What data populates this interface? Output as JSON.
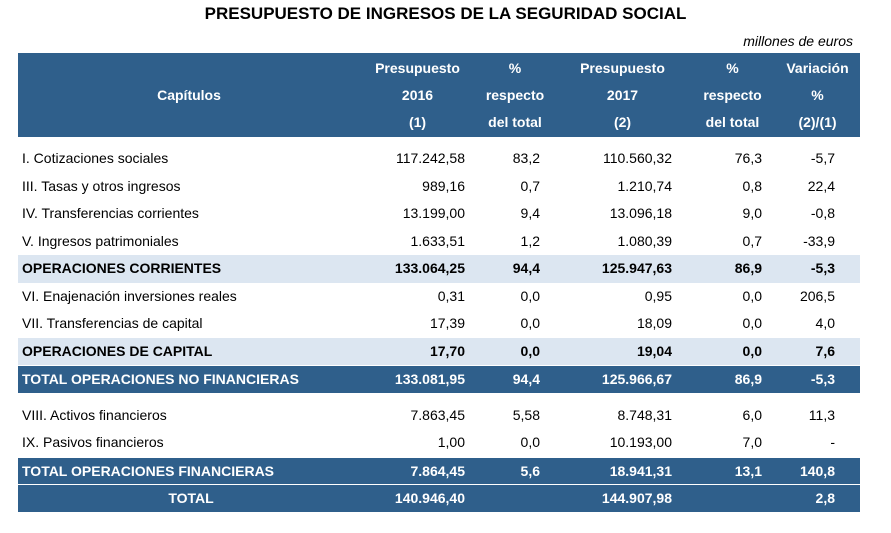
{
  "title": "PRESUPUESTO DE INGRESOS DE LA SEGURIDAD SOCIAL",
  "unit": "millones de euros",
  "table": {
    "header": [
      [
        "Capítulos"
      ],
      [
        "Presupuesto",
        "2016",
        "(1)"
      ],
      [
        "%",
        "respecto",
        "del total"
      ],
      [
        "Presupuesto",
        "2017",
        "(2)"
      ],
      [
        "%",
        "respecto",
        "del total"
      ],
      [
        "Variación",
        "%",
        "(2)/(1)"
      ]
    ],
    "rows": [
      [
        "I. Cotizaciones sociales",
        "117.242,58",
        "83,2",
        "110.560,32",
        "76,3",
        "-5,7"
      ],
      [
        "III. Tasas y otros ingresos",
        "989,16",
        "0,7",
        "1.210,74",
        "0,8",
        "22,4"
      ],
      [
        "IV. Transferencias corrientes",
        "13.199,00",
        "9,4",
        "13.096,18",
        "9,0",
        "-0,8"
      ],
      [
        "V. Ingresos patrimoniales",
        "1.633,51",
        "1,2",
        "1.080,39",
        "0,7",
        "-33,9"
      ],
      [
        "OPERACIONES CORRIENTES",
        "133.064,25",
        "94,4",
        "125.947,63",
        "86,9",
        "-5,3"
      ],
      [
        "VI. Enajenación inversiones reales",
        "0,31",
        "0,0",
        "0,95",
        "0,0",
        "206,5"
      ],
      [
        "VII. Transferencias de capital",
        "17,39",
        "0,0",
        "18,09",
        "0,0",
        "4,0"
      ],
      [
        "OPERACIONES DE CAPITAL",
        "17,70",
        "0,0",
        "19,04",
        "0,0",
        "7,6"
      ],
      [
        "TOTAL OPERACIONES NO FINANCIERAS",
        "133.081,95",
        "94,4",
        "125.966,67",
        "86,9",
        "-5,3"
      ],
      [
        "VIII. Activos financieros",
        "7.863,45",
        "5,58",
        "8.748,31",
        "6,0",
        "11,3"
      ],
      [
        "IX. Pasivos financieros",
        "1,00",
        "0,0",
        "10.193,00",
        "7,0",
        "-"
      ],
      [
        "TOTAL OPERACIONES FINANCIERAS",
        "7.864,45",
        "5,6",
        "18.941,31",
        "13,1",
        "140,8"
      ],
      [
        "TOTAL",
        "140.946,40",
        null,
        "144.907,98",
        null,
        "2,8"
      ]
    ]
  }
}
